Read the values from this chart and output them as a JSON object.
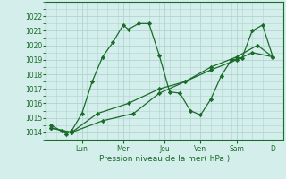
{
  "xlabel": "Pression niveau de la mer( hPa )",
  "background_color": "#d4eeeb",
  "line_color": "#1a6b2a",
  "marker_color": "#1a6b2a",
  "grid_color": "#b0d4d0",
  "ylim": [
    1013.5,
    1022.5
  ],
  "yticks": [
    1014,
    1015,
    1016,
    1017,
    1018,
    1019,
    1020,
    1021,
    1022
  ],
  "day_labels": [
    "Lun",
    "Mer",
    "Jeu",
    "Ven",
    "Sam",
    "D"
  ],
  "day_positions": [
    3.5,
    7.5,
    11.5,
    15,
    18.5,
    22
  ],
  "xlim": [
    0,
    23
  ],
  "series1_x": [
    0.5,
    1.5,
    2.0,
    2.5,
    3.5,
    4.5,
    5.5,
    6.5,
    7.5,
    8.0,
    9.0,
    10.0,
    11.0,
    12.0,
    13.0,
    14.0,
    15.0,
    16.0,
    17.0,
    18.0,
    19.0,
    20.0,
    21.0,
    22.0
  ],
  "series1_y": [
    1014.5,
    1014.1,
    1013.9,
    1014.1,
    1015.3,
    1017.5,
    1019.2,
    1020.2,
    1021.4,
    1021.1,
    1021.5,
    1021.5,
    1019.3,
    1016.8,
    1016.7,
    1015.5,
    1015.2,
    1016.3,
    1017.9,
    1019.0,
    1019.1,
    1021.0,
    1021.4,
    1019.2
  ],
  "series2_x": [
    0.5,
    2.5,
    5.0,
    8.0,
    11.0,
    13.5,
    16.0,
    18.5,
    20.0,
    22.0
  ],
  "series2_y": [
    1014.3,
    1014.0,
    1015.3,
    1016.0,
    1017.0,
    1017.5,
    1018.3,
    1019.0,
    1019.5,
    1019.2
  ],
  "series3_x": [
    0.5,
    2.5,
    5.5,
    8.5,
    11.0,
    13.5,
    16.0,
    18.5,
    20.5,
    22.0
  ],
  "series3_y": [
    1014.3,
    1014.0,
    1014.8,
    1015.3,
    1016.7,
    1017.5,
    1018.5,
    1019.2,
    1020.0,
    1019.2
  ]
}
